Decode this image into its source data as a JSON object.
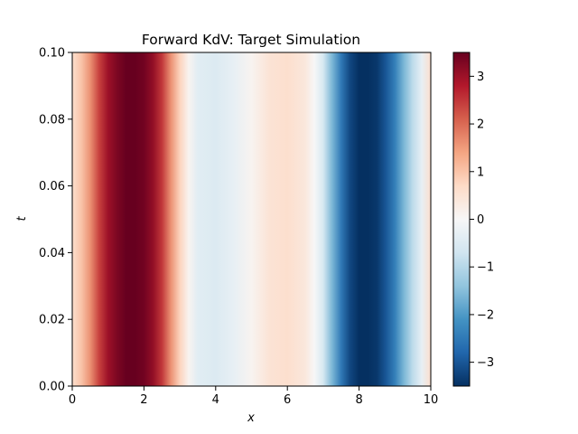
{
  "chart_data": {
    "type": "heatmap",
    "title": "Forward KdV: Target Simulation",
    "xlabel": "x",
    "ylabel": "t",
    "xlim": [
      0,
      10
    ],
    "ylim": [
      0,
      0.1
    ],
    "x_ticks": [
      "0",
      "2",
      "4",
      "6",
      "8",
      "10"
    ],
    "y_ticks": [
      "0.00",
      "0.02",
      "0.04",
      "0.06",
      "0.08",
      "0.10"
    ],
    "colormap": "RdBu_r",
    "colorbar": {
      "vmin": -3.5,
      "vmax": 3.5,
      "ticks": [
        "−3",
        "−2",
        "−1",
        "0",
        "1",
        "2",
        "3"
      ]
    },
    "profile": {
      "x": [
        0,
        0.25,
        0.5,
        0.75,
        1.0,
        1.25,
        1.5,
        1.75,
        2.0,
        2.25,
        2.5,
        2.75,
        3.0,
        3.25,
        3.5,
        4.0,
        4.5,
        5.0,
        5.5,
        6.0,
        6.5,
        6.75,
        7.0,
        7.25,
        7.5,
        7.75,
        8.0,
        8.25,
        8.5,
        8.75,
        9.0,
        9.25,
        9.5,
        9.75,
        10.0
      ],
      "u": [
        0.6,
        1.0,
        1.6,
        2.4,
        3.0,
        3.3,
        3.5,
        3.5,
        3.4,
        3.1,
        2.5,
        1.6,
        0.8,
        0.1,
        -0.4,
        -0.5,
        -0.3,
        0.1,
        0.5,
        0.6,
        0.4,
        0.0,
        -0.6,
        -1.6,
        -2.5,
        -3.2,
        -3.5,
        -3.5,
        -3.4,
        -3.0,
        -2.4,
        -1.6,
        -0.9,
        -0.3,
        0.6
      ]
    }
  }
}
